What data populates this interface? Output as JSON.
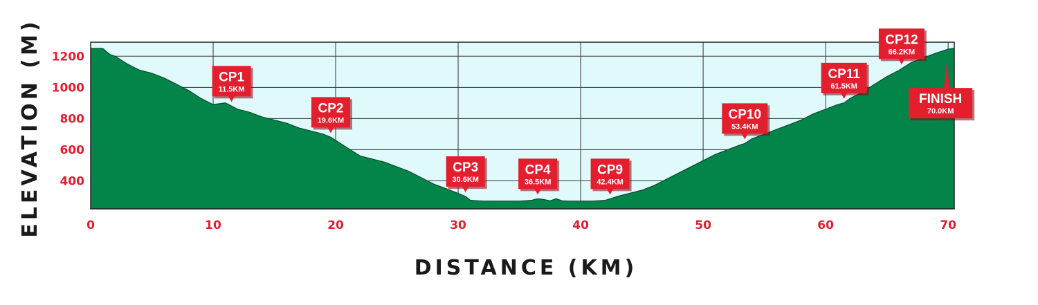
{
  "chart_data": {
    "type": "area",
    "xlabel": "DISTANCE (KM)",
    "ylabel": "ELEVATION (M)",
    "xlim": [
      0,
      70.5
    ],
    "ylim": [
      220,
      1290
    ],
    "x_ticks": [
      0,
      10,
      20,
      30,
      40,
      50,
      60,
      70
    ],
    "y_ticks": [
      400,
      600,
      800,
      1000,
      1200
    ],
    "grid": true,
    "colors": {
      "fill": "#03854a",
      "edge": "#0a4a2c",
      "plot_background": "#e0f9fb",
      "grid": "#333333",
      "tick_labels": "#e31e2d",
      "marker": "#e31e2d",
      "marker_shadow": "#7a0a12"
    },
    "profile": {
      "x": [
        0,
        1,
        1.2,
        1.6,
        2,
        3,
        4,
        5,
        6,
        7,
        8,
        9,
        10,
        11,
        11.5,
        12,
        13,
        14,
        15,
        16,
        17,
        18,
        19,
        19.6,
        20,
        21,
        22,
        23,
        24,
        25,
        26,
        27,
        28,
        29,
        30,
        30.6,
        31,
        32,
        33,
        34,
        35,
        36,
        36.5,
        37,
        37.5,
        38,
        38.5,
        39,
        40,
        41,
        42,
        42.4,
        43,
        44,
        45,
        46,
        47,
        48,
        49,
        50,
        51,
        52,
        53,
        53.4,
        54,
        55,
        56,
        57,
        58,
        59,
        60,
        61,
        61.5,
        62,
        63,
        64,
        65,
        66,
        66.2,
        67,
        68,
        69,
        70,
        70.4
      ],
      "y": [
        1250,
        1250,
        1235,
        1210,
        1200,
        1150,
        1110,
        1090,
        1060,
        1020,
        980,
        930,
        890,
        900,
        880,
        860,
        840,
        810,
        790,
        770,
        740,
        720,
        700,
        680,
        660,
        610,
        560,
        540,
        520,
        490,
        460,
        420,
        380,
        350,
        320,
        300,
        275,
        270,
        270,
        270,
        270,
        275,
        285,
        280,
        272,
        285,
        272,
        270,
        270,
        270,
        275,
        285,
        300,
        320,
        340,
        370,
        410,
        450,
        490,
        530,
        570,
        600,
        630,
        640,
        670,
        700,
        730,
        760,
        790,
        830,
        860,
        890,
        900,
        930,
        970,
        1020,
        1070,
        1110,
        1120,
        1160,
        1190,
        1220,
        1245,
        1250
      ]
    },
    "checkpoints": [
      {
        "name": "CP1",
        "distance_label": "11.5KM",
        "km": 11.5
      },
      {
        "name": "CP2",
        "distance_label": "19.6KM",
        "km": 19.6
      },
      {
        "name": "CP3",
        "distance_label": "30.6KM",
        "km": 30.6
      },
      {
        "name": "CP4",
        "distance_label": "36.5KM",
        "km": 36.5
      },
      {
        "name": "CP9",
        "distance_label": "42.4KM",
        "km": 42.4
      },
      {
        "name": "CP10",
        "distance_label": "53.4KM",
        "km": 53.4
      },
      {
        "name": "CP11",
        "distance_label": "61.5KM",
        "km": 61.5
      },
      {
        "name": "CP12",
        "distance_label": "66.2KM",
        "km": 66.2
      },
      {
        "name": "FINISH",
        "distance_label": "70.0KM",
        "km": 70.0
      }
    ]
  }
}
